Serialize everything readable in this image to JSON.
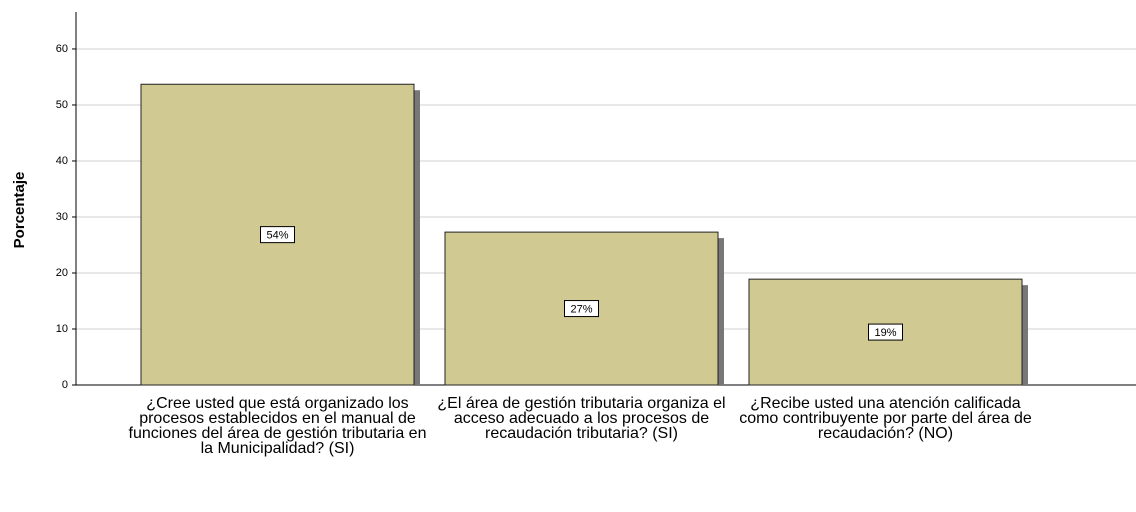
{
  "chart_data": {
    "type": "bar",
    "y_label": "Porcentaje",
    "categories": [
      "¿Cree usted que está organizado los procesos establecidos en el manual de funciones del área de gestión tributaria en la Municipalidad? (SI)",
      "¿El área de gestión tributaria organiza el acceso adecuado a los procesos de recaudación tributaria? (SI)",
      "¿Recibe usted una atención calificada como contribuyente por parte del área de recaudación? (NO)"
    ],
    "values": [
      53.7,
      27.3,
      18.9
    ],
    "value_labels": [
      "54%",
      "27%",
      "19%"
    ],
    "color": "#d0c991",
    "ylim": [
      0,
      66.6
    ],
    "yticks": [
      0,
      10,
      20,
      30,
      40,
      50,
      60
    ],
    "grid": true
  }
}
